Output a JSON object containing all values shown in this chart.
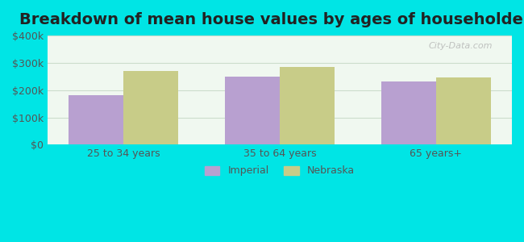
{
  "title": "Breakdown of mean house values by ages of householders",
  "categories": [
    "25 to 34 years",
    "35 to 64 years",
    "65 years+"
  ],
  "imperial_values": [
    182000,
    248000,
    232000
  ],
  "nebraska_values": [
    270000,
    285000,
    245000
  ],
  "imperial_color": "#b8a0d0",
  "nebraska_color": "#c8cc88",
  "ylim": [
    0,
    400000
  ],
  "yticks": [
    0,
    100000,
    200000,
    300000,
    400000
  ],
  "ytick_labels": [
    "$0",
    "$100k",
    "$200k",
    "$300k",
    "$400k"
  ],
  "background_outer": "#00e5e5",
  "background_inner_top": "#f0f8f0",
  "background_inner_bottom": "#e8f8e8",
  "grid_color": "#ccddcc",
  "legend_labels": [
    "Imperial",
    "Nebraska"
  ],
  "bar_width": 0.35,
  "title_fontsize": 14
}
